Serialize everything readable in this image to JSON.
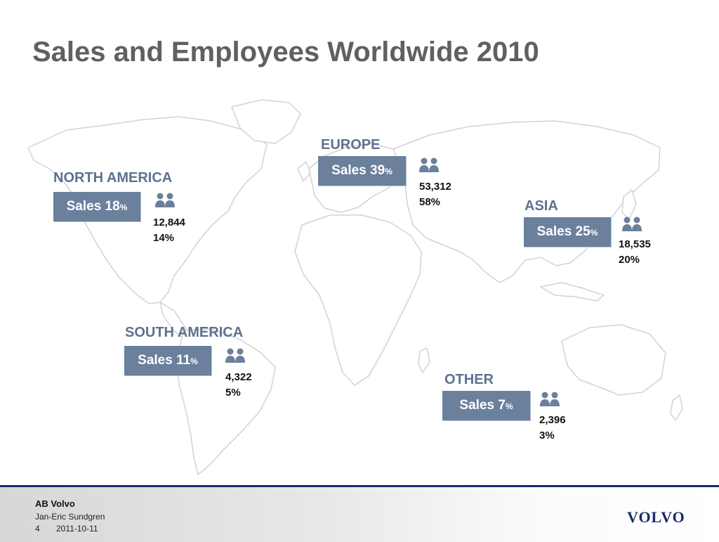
{
  "slide": {
    "title": "Sales and Employees Worldwide 2010"
  },
  "regions": {
    "north_america": {
      "name": "NORTH AMERICA",
      "sales_label": "Sales 18",
      "sales_unit": "%",
      "employees": "12,844",
      "employee_share": "14%"
    },
    "europe": {
      "name": "EUROPE",
      "sales_label": "Sales  39",
      "sales_unit": "%",
      "employees": "53,312",
      "employee_share": "58%"
    },
    "asia": {
      "name": "ASIA",
      "sales_label": "Sales 25",
      "sales_unit": "%",
      "employees": "18,535",
      "employee_share": "20%"
    },
    "south_america": {
      "name": "SOUTH AMERICA",
      "sales_label": "Sales 11",
      "sales_unit": "%",
      "employees": "4,322",
      "employee_share": "5%"
    },
    "other": {
      "name": "OTHER",
      "sales_label": "Sales 7",
      "sales_unit": "%",
      "employees": "2,396",
      "employee_share": "3%"
    }
  },
  "footer": {
    "company": "AB Volvo",
    "author": "Jan-Eric Sundgren",
    "page_number": "4",
    "date": "2011-10-11",
    "logo": "VOLVO"
  },
  "icons": {
    "employees": "people-icon",
    "map": "world-map"
  },
  "colors": {
    "title": "#5f6063",
    "accent": "#5c7290",
    "box": "#6a809c",
    "footer_rule": "#1c2a6b"
  }
}
